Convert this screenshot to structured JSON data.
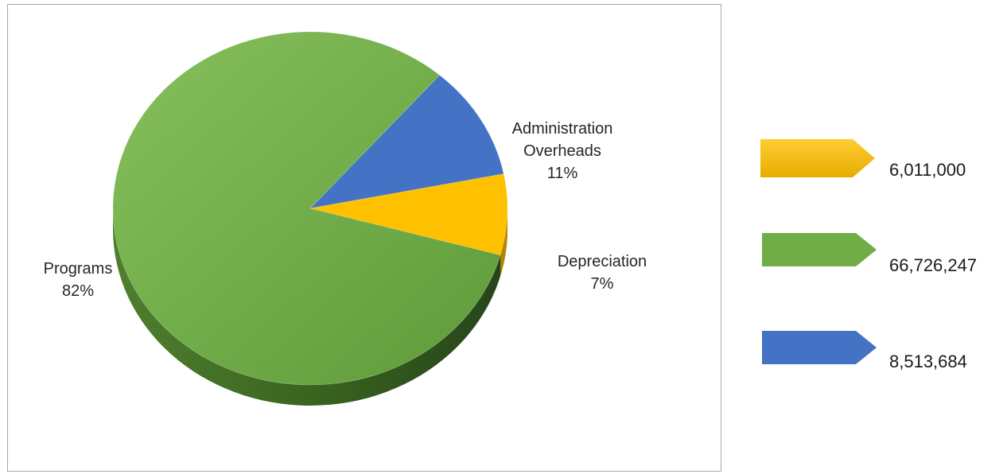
{
  "chart_data": {
    "type": "pie",
    "title": "",
    "slices": [
      {
        "label": "Administration Overheads",
        "percent_label": "11%",
        "value": 8513684,
        "color": "#4472C4"
      },
      {
        "label": "Depreciation",
        "percent_label": "7%",
        "value": 6011000,
        "color": "#FFC000"
      },
      {
        "label": "Programs",
        "percent_label": "82%",
        "value": 66726247,
        "color": "#70AD47"
      }
    ],
    "legend": [
      {
        "value_label": "6,011,000",
        "color": "#FFC000"
      },
      {
        "value_label": "66,726,247",
        "color": "#70AD47"
      },
      {
        "value_label": "8,513,684",
        "color": "#4472C4"
      }
    ],
    "legend_position": "right",
    "style": "3d"
  }
}
